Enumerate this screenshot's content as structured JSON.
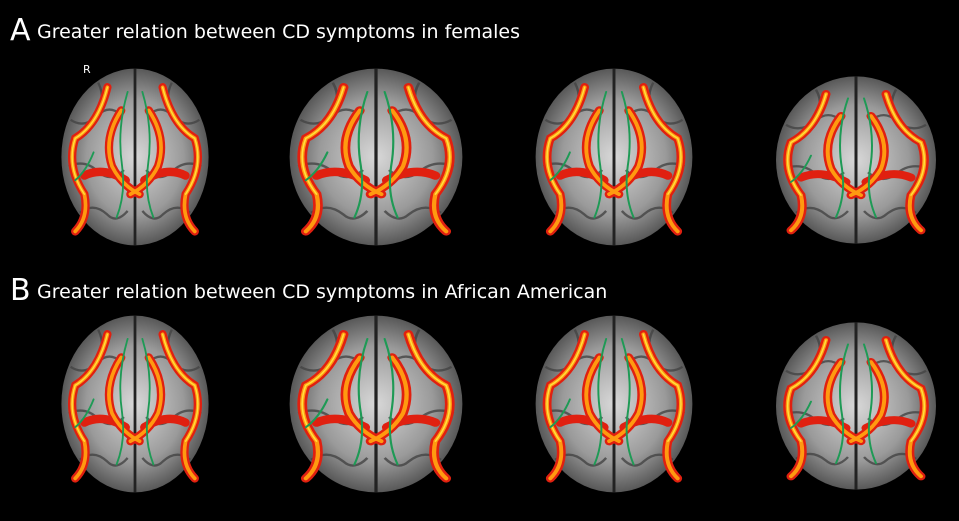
{
  "panels": [
    {
      "letter": "A",
      "title": "Greater relation between CD symptoms in females",
      "side_label": "R"
    },
    {
      "letter": "B",
      "title": "Greater relation between CD symptoms in African American"
    }
  ]
}
